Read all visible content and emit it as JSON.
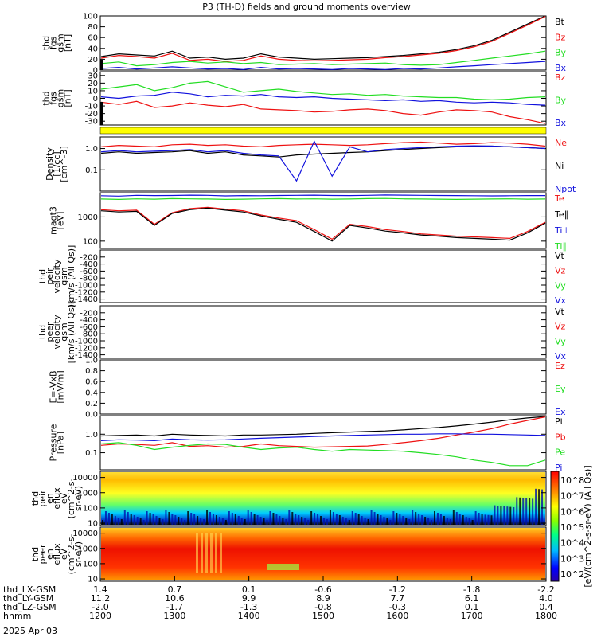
{
  "title": "P3 (TH-D) fields and ground moments overview",
  "colors": {
    "black": "#000000",
    "red": "#ee1111",
    "green": "#22dd22",
    "blue": "#1111dd",
    "yellow": "#ffff00"
  },
  "chart_data": [
    {
      "type": "line",
      "id": "fgs_total",
      "ylabel": [
        "thd",
        "fgs",
        "gsm",
        "[nT]"
      ],
      "yticks": [
        "100",
        "80",
        "60",
        "40",
        "20",
        "0"
      ],
      "ylim": [
        0,
        100
      ],
      "series": [
        {
          "name": "Bt",
          "color": "black",
          "values": [
            25,
            30,
            28,
            26,
            35,
            22,
            24,
            20,
            22,
            30,
            24,
            22,
            20,
            21,
            22,
            23,
            25,
            27,
            30,
            33,
            38,
            45,
            55,
            70,
            85,
            100
          ]
        },
        {
          "name": "Bz",
          "color": "red",
          "values": [
            22,
            27,
            25,
            22,
            31,
            18,
            20,
            16,
            18,
            26,
            20,
            18,
            17,
            18,
            19,
            20,
            23,
            25,
            28,
            31,
            36,
            43,
            53,
            68,
            83,
            99
          ]
        },
        {
          "name": "By",
          "color": "green",
          "values": [
            12,
            15,
            8,
            10,
            14,
            16,
            13,
            15,
            12,
            14,
            10,
            11,
            12,
            10,
            11,
            12,
            13,
            10,
            9,
            10,
            14,
            18,
            22,
            26,
            30,
            35
          ]
        },
        {
          "name": "Bx",
          "color": "blue",
          "values": [
            3,
            5,
            2,
            4,
            6,
            4,
            2,
            3,
            1,
            5,
            2,
            3,
            2,
            1,
            3,
            2,
            1,
            3,
            2,
            4,
            6,
            8,
            10,
            12,
            14,
            16
          ]
        }
      ],
      "legend": [
        "Bt",
        "Bz",
        "By",
        "Bx"
      ]
    },
    {
      "type": "line",
      "id": "fgs_components",
      "ylabel": [
        "thd",
        "fgs",
        "gsm",
        "[nT]"
      ],
      "yticks": [
        "30",
        "20",
        "10",
        "0",
        "-10",
        "-20",
        "-30"
      ],
      "ylim": [
        -35,
        35
      ],
      "series": [
        {
          "name": "Bz",
          "color": "red",
          "values": [
            -5,
            -8,
            -4,
            -12,
            -10,
            -6,
            -9,
            -11,
            -8,
            -14,
            -15,
            -16,
            -18,
            -17,
            -15,
            -14,
            -16,
            -20,
            -22,
            -18,
            -15,
            -16,
            -18,
            -24,
            -28,
            -33
          ]
        },
        {
          "name": "By",
          "color": "green",
          "values": [
            12,
            15,
            18,
            10,
            14,
            20,
            22,
            15,
            8,
            10,
            12,
            9,
            7,
            5,
            6,
            4,
            5,
            3,
            2,
            1,
            1,
            -1,
            -2,
            -1,
            1,
            2
          ]
        },
        {
          "name": "Bx",
          "color": "blue",
          "values": [
            2,
            0,
            3,
            4,
            8,
            6,
            2,
            4,
            3,
            5,
            2,
            1,
            2,
            0,
            -1,
            -2,
            -3,
            -2,
            -4,
            -3,
            -5,
            -6,
            -5,
            -6,
            -8,
            -9
          ]
        }
      ],
      "legend": [
        "Bz",
        "By",
        "Bx"
      ]
    },
    {
      "type": "line",
      "id": "density",
      "scale": "log",
      "ylabel": [
        "Density",
        "[1/cc]",
        "[cm^-3]"
      ],
      "yticks": [
        "1.0",
        "0.1"
      ],
      "ylim": [
        0.01,
        3.5
      ],
      "series": [
        {
          "name": "Ne",
          "color": "red",
          "values": [
            1.2,
            1.4,
            1.3,
            1.2,
            1.5,
            1.6,
            1.4,
            1.5,
            1.3,
            1.2,
            1.4,
            1.5,
            1.6,
            1.5,
            1.4,
            1.5,
            1.7,
            1.9,
            2.0,
            1.8,
            1.6,
            1.7,
            1.9,
            1.8,
            1.6,
            1.3
          ]
        },
        {
          "name": "Ni",
          "color": "black",
          "values": [
            0.6,
            0.7,
            0.6,
            0.65,
            0.7,
            0.8,
            0.6,
            0.7,
            0.5,
            0.45,
            0.4,
            0.5,
            0.55,
            0.6,
            0.65,
            0.7,
            0.8,
            0.9,
            1.0,
            1.1,
            1.2,
            1.3,
            1.3,
            1.2,
            1.1,
            1.0
          ]
        },
        {
          "name": "Npot",
          "color": "blue",
          "values": [
            0.7,
            0.8,
            0.7,
            0.75,
            0.8,
            0.9,
            0.7,
            0.8,
            0.6,
            0.5,
            0.45,
            0.03,
            2.2,
            0.05,
            1.2,
            0.7,
            0.9,
            1.0,
            1.1,
            1.2,
            1.3,
            1.35,
            1.3,
            1.2,
            1.1,
            1.0
          ]
        }
      ],
      "legend": [
        "Ne",
        "Ni",
        "Npot"
      ]
    },
    {
      "type": "line",
      "id": "temperature",
      "scale": "log",
      "ylabel": [
        "magt3",
        "[eV]"
      ],
      "yticks": [
        "1000",
        "100"
      ],
      "ylim": [
        50,
        10000
      ],
      "series": [
        {
          "name": "Te⊥",
          "color": "red",
          "values": [
            2000,
            1800,
            1900,
            500,
            1500,
            2200,
            2500,
            2100,
            1800,
            1200,
            900,
            700,
            300,
            120,
            500,
            400,
            300,
            250,
            200,
            180,
            160,
            150,
            140,
            130,
            250,
            600
          ]
        },
        {
          "name": "Te∥",
          "color": "black",
          "values": [
            1800,
            1600,
            1700,
            450,
            1400,
            2000,
            2300,
            1900,
            1600,
            1100,
            800,
            600,
            250,
            100,
            450,
            350,
            260,
            220,
            180,
            160,
            140,
            130,
            120,
            110,
            220,
            550
          ]
        },
        {
          "name": "Ti⊥",
          "color": "blue",
          "values": [
            7500,
            7200,
            7800,
            7600,
            7700,
            7900,
            7800,
            7400,
            7600,
            7500,
            7700,
            7800,
            7900,
            7700,
            7600,
            7800,
            8000,
            7900,
            7800,
            7700,
            7600,
            7500,
            7400,
            7500,
            7600,
            7600
          ]
        },
        {
          "name": "Ti∥",
          "color": "green",
          "values": [
            5500,
            5300,
            5600,
            5400,
            5700,
            5600,
            5500,
            5300,
            5400,
            5600,
            5700,
            5500,
            5600,
            5400,
            5500,
            5700,
            5800,
            5600,
            5500,
            5400,
            5300,
            5400,
            5500,
            5600,
            5400,
            5500
          ]
        }
      ],
      "legend": [
        "Te⊥",
        "Te∥",
        "Ti⊥",
        "Ti∥"
      ]
    },
    {
      "type": "line",
      "id": "peir_velocity",
      "ylabel": [
        "thd",
        "peir",
        "velocity",
        "gsm",
        "[km/s (All Qs)]"
      ],
      "yticks": [
        "-200",
        "-400",
        "-600",
        "-800",
        "-1000",
        "-1200",
        "-1400"
      ],
      "ylim": [
        -1500,
        0
      ],
      "series": [],
      "legend": [
        "Vt",
        "Vz",
        "Vy",
        "Vx"
      ]
    },
    {
      "type": "line",
      "id": "peer_velocity",
      "ylabel": [
        "thd",
        "peer",
        "velocity",
        "gsm",
        "[km/s (All Qs)]"
      ],
      "yticks": [
        "-200",
        "-400",
        "-600",
        "-800",
        "-1000",
        "-1200",
        "-1400"
      ],
      "ylim": [
        -1500,
        0
      ],
      "series": [],
      "legend": [
        "Vt",
        "Vz",
        "Vy",
        "Vx"
      ]
    },
    {
      "type": "line",
      "id": "efield",
      "ylabel": [
        "E=-VxB",
        "[mV/m]"
      ],
      "yticks": [
        "1.0",
        "0.8",
        "0.6",
        "0.4",
        "0.2",
        "0.0"
      ],
      "ylim": [
        0,
        1
      ],
      "series": [],
      "legend": [
        "Ez",
        "Ey",
        "Ex"
      ]
    },
    {
      "type": "line",
      "id": "pressure",
      "scale": "log",
      "ylabel": [
        "Pressure",
        "[nPa]"
      ],
      "yticks": [
        "1.0",
        "0.1"
      ],
      "ylim": [
        0.012,
        10
      ],
      "series": [
        {
          "name": "Pt",
          "color": "black",
          "values": [
            0.8,
            0.85,
            0.9,
            0.8,
            1.0,
            0.9,
            0.85,
            0.8,
            0.9,
            0.9,
            0.95,
            1.0,
            1.1,
            1.2,
            1.3,
            1.4,
            1.5,
            1.7,
            2.0,
            2.3,
            2.8,
            3.5,
            4.5,
            6.0,
            7.5,
            9.0
          ]
        },
        {
          "name": "Pb",
          "color": "red",
          "values": [
            0.25,
            0.3,
            0.28,
            0.25,
            0.35,
            0.22,
            0.24,
            0.2,
            0.22,
            0.3,
            0.24,
            0.22,
            0.2,
            0.21,
            0.22,
            0.23,
            0.28,
            0.35,
            0.45,
            0.6,
            0.9,
            1.3,
            2.0,
            3.5,
            5.5,
            8.5
          ]
        },
        {
          "name": "Pe",
          "color": "green",
          "values": [
            0.3,
            0.35,
            0.25,
            0.15,
            0.2,
            0.25,
            0.3,
            0.28,
            0.2,
            0.15,
            0.18,
            0.2,
            0.15,
            0.12,
            0.15,
            0.14,
            0.13,
            0.12,
            0.1,
            0.08,
            0.06,
            0.04,
            0.03,
            0.02,
            0.02,
            0.04
          ]
        },
        {
          "name": "Pi",
          "color": "blue",
          "values": [
            0.45,
            0.5,
            0.48,
            0.45,
            0.55,
            0.5,
            0.48,
            0.5,
            0.55,
            0.6,
            0.65,
            0.7,
            0.75,
            0.8,
            0.85,
            0.9,
            0.95,
            1.0,
            1.0,
            1.05,
            1.05,
            1.0,
            1.0,
            0.95,
            0.9,
            0.85
          ]
        }
      ],
      "legend": [
        "Pt",
        "Pb",
        "Pe",
        "Pi"
      ]
    },
    {
      "type": "heatmap",
      "id": "peir_eflux",
      "scale": "log",
      "ylabel": [
        "thd",
        "peir",
        "en",
        "eflux",
        "eV",
        "(cm^2-s-",
        "sr-eV)"
      ],
      "yticks": [
        "10000",
        "1000",
        "100",
        "10"
      ],
      "ylim": [
        7,
        25000
      ],
      "description": "ion energy flux spectrogram"
    },
    {
      "type": "heatmap",
      "id": "peer_eflux",
      "scale": "log",
      "ylabel": [
        "thd",
        "peer",
        "en",
        "eflux",
        "eV",
        "(cm^2-s-",
        "sr-eV)"
      ],
      "yticks": [
        "10000",
        "1000",
        "100",
        "10"
      ],
      "ylim": [
        7,
        25000
      ],
      "description": "electron energy flux spectrogram"
    }
  ],
  "colorbar": {
    "ticks": [
      "10^8",
      "10^7",
      "10^6",
      "10^5",
      "10^4",
      "10^3",
      "10^2"
    ],
    "label": "[eV/(cm^2-s-sr-eV) (All Qs)]"
  },
  "xaxis": {
    "rows": [
      {
        "label": "thd_LX-GSM",
        "values": [
          "1.4",
          "0.7",
          "0.1",
          "-0.6",
          "-1.2",
          "-1.8",
          "-2.2"
        ]
      },
      {
        "label": "thd_LY-GSM",
        "values": [
          "11.2",
          "10.6",
          "9.9",
          "8.9",
          "7.7",
          "6.1",
          "4.0"
        ]
      },
      {
        "label": "thd_LZ-GSM",
        "values": [
          "-2.0",
          "-1.7",
          "-1.3",
          "-0.8",
          "-0.3",
          "0.1",
          "0.4"
        ]
      },
      {
        "label": "hhmm",
        "values": [
          "1200",
          "1300",
          "1400",
          "1500",
          "1600",
          "1700",
          "1800"
        ]
      }
    ],
    "date": "2025 Apr 03"
  }
}
